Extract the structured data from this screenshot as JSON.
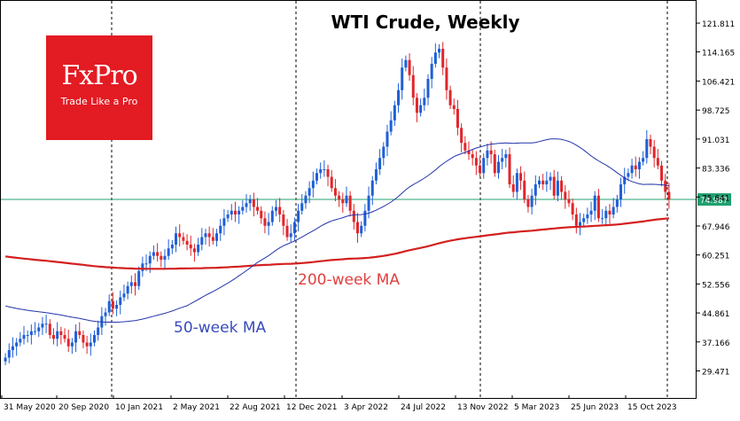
{
  "logo": {
    "brand": "FxPro",
    "tagline": "Trade Like a Pro",
    "bg": "#e31b23"
  },
  "chart_data": {
    "type": "candlestick",
    "title": "WTI Crude, Weekly",
    "y_ticks": [
      "121.811",
      "114.165",
      "106.421",
      "98.725",
      "91.031",
      "83.336",
      "75.641",
      "67.946",
      "60.251",
      "52.556",
      "44.861",
      "37.166",
      "29.471"
    ],
    "y_tick_values": [
      121.811,
      114.165,
      106.421,
      98.725,
      91.031,
      83.336,
      75.641,
      67.946,
      60.251,
      52.556,
      44.861,
      37.166,
      29.471
    ],
    "ylim": [
      23.0,
      127.0
    ],
    "x_ticks": [
      "31 May 2020",
      "20 Sep 2020",
      "10 Jan 2021",
      "2 May 2021",
      "22 Aug 2021",
      "12 Dec 2021",
      "3 Apr 2022",
      "24 Jul 2022",
      "13 Nov 2022",
      "5 Mar 2023",
      "25 Jun 2023",
      "15 Oct 2023"
    ],
    "current_price": "74.987",
    "colors": {
      "up": "#1f5fd6",
      "down": "#e0262b",
      "ma50": "#2233aa",
      "ma200": "#d42020",
      "price_line": "#20a070",
      "label_bg": "#20a070"
    },
    "annotations": [
      {
        "text": "200-week MA",
        "color": "#e04040"
      },
      {
        "text": "50-week MA",
        "color": "#3a4bbb"
      }
    ],
    "week_count": 180,
    "closes": [
      33,
      35,
      36,
      37,
      38,
      39,
      39,
      40,
      40,
      41,
      42,
      42,
      39,
      38,
      40,
      39,
      38,
      36,
      37,
      40,
      39,
      37,
      36,
      37,
      39,
      41,
      44,
      45,
      48,
      46,
      47,
      49,
      50,
      52,
      53,
      52,
      56,
      58,
      58,
      60,
      61,
      60,
      59,
      60,
      62,
      63,
      66,
      65,
      64,
      63,
      62,
      61,
      63,
      65,
      66,
      65,
      64,
      66,
      68,
      70,
      71,
      72,
      71,
      72,
      73,
      74,
      75,
      73,
      72,
      70,
      68,
      69,
      72,
      73,
      71,
      68,
      65,
      66,
      69,
      72,
      74,
      76,
      78,
      80,
      82,
      83,
      83,
      81,
      78,
      76,
      75,
      74,
      76,
      72,
      69,
      66,
      68,
      72,
      76,
      80,
      83,
      86,
      89,
      93,
      96,
      100,
      104,
      110,
      112,
      108,
      102,
      98,
      100,
      102,
      107,
      111,
      114,
      115,
      110,
      104,
      100,
      99,
      94,
      90,
      88,
      87,
      86,
      84,
      82,
      86,
      88,
      87,
      82,
      85,
      86,
      87,
      79,
      77,
      82,
      80,
      75,
      73,
      76,
      79,
      80,
      79,
      80,
      81,
      76,
      80,
      77,
      75,
      74,
      71,
      68,
      69,
      70,
      71,
      72,
      76,
      70,
      70,
      72,
      71,
      73,
      75,
      79,
      81,
      82,
      84,
      83,
      85,
      86,
      91,
      89,
      86,
      84,
      80,
      77,
      75
    ]
  }
}
